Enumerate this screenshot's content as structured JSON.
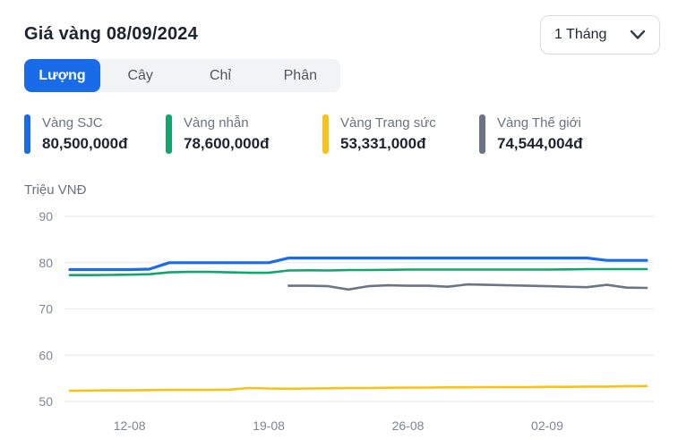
{
  "header": {
    "title": "Giá vàng 08/09/2024",
    "period_selector": {
      "value": "1 Tháng"
    }
  },
  "tabs": [
    {
      "id": "luong",
      "label": "Lượng",
      "active": true
    },
    {
      "id": "cay",
      "label": "Cây",
      "active": false
    },
    {
      "id": "chi",
      "label": "Chỉ",
      "active": false
    },
    {
      "id": "phan",
      "label": "Phân",
      "active": false
    }
  ],
  "legend": [
    {
      "id": "sjc",
      "name": "Vàng SJC",
      "value": "80,500,000đ",
      "color": "#1a6be8"
    },
    {
      "id": "nhan",
      "name": "Vàng nhẫn",
      "value": "78,600,000đ",
      "color": "#14a46e"
    },
    {
      "id": "trang-suc",
      "name": "Vàng Trang sức",
      "value": "53,331,000đ",
      "color": "#f6c21e"
    },
    {
      "id": "the-gioi",
      "name": "Vàng Thế giới",
      "value": "74,544,004đ",
      "color": "#6b7584"
    }
  ],
  "chart_data": {
    "type": "line",
    "unit_label": "Triệu VNĐ",
    "x": [
      "09-08",
      "10-08",
      "11-08",
      "12-08",
      "13-08",
      "14-08",
      "15-08",
      "16-08",
      "17-08",
      "18-08",
      "19-08",
      "20-08",
      "21-08",
      "22-08",
      "23-08",
      "24-08",
      "25-08",
      "26-08",
      "27-08",
      "28-08",
      "29-08",
      "30-08",
      "31-08",
      "01-09",
      "02-09",
      "03-09",
      "04-09",
      "05-09",
      "06-09",
      "07-09"
    ],
    "x_tick_indices": [
      3,
      10,
      17,
      24
    ],
    "x_tick_labels": [
      "12-08",
      "19-08",
      "26-08",
      "02-09"
    ],
    "y_ticks": [
      90,
      80,
      70,
      60,
      50
    ],
    "ylim": [
      50,
      90
    ],
    "grid": true,
    "legend_position": "top",
    "series": [
      {
        "id": "sjc",
        "name": "Vàng SJC",
        "color": "#1a6be8",
        "values": [
          78.5,
          78.5,
          78.5,
          78.5,
          78.6,
          80,
          80,
          80,
          80,
          80,
          80,
          81,
          81,
          81,
          81,
          81,
          81,
          81,
          81,
          81,
          81,
          81,
          81,
          81,
          81,
          81,
          81,
          80.5,
          80.5,
          80.5
        ]
      },
      {
        "id": "nhan",
        "name": "Vàng nhẫn",
        "color": "#14a46e",
        "values": [
          77.3,
          77.3,
          77.35,
          77.4,
          77.5,
          77.9,
          78,
          78,
          77.9,
          77.8,
          77.8,
          78.3,
          78.35,
          78.3,
          78.4,
          78.4,
          78.45,
          78.5,
          78.5,
          78.5,
          78.5,
          78.5,
          78.5,
          78.5,
          78.5,
          78.55,
          78.6,
          78.6,
          78.6,
          78.6
        ]
      },
      {
        "id": "trang-suc",
        "name": "Vàng Trang sức",
        "color": "#f6c21e",
        "values": [
          52.3,
          52.35,
          52.4,
          52.4,
          52.45,
          52.5,
          52.5,
          52.5,
          52.55,
          52.9,
          52.8,
          52.75,
          52.8,
          52.85,
          52.9,
          52.9,
          52.95,
          53,
          53,
          53.05,
          53.05,
          53.1,
          53.1,
          53.1,
          53.15,
          53.15,
          53.2,
          53.2,
          53.3,
          53.33
        ]
      },
      {
        "id": "the-gioi",
        "name": "Vàng Thế giới",
        "color": "#6b7584",
        "values": [
          null,
          null,
          null,
          null,
          null,
          null,
          null,
          null,
          null,
          null,
          null,
          75,
          75,
          74.9,
          74.2,
          74.9,
          75.1,
          75,
          75,
          74.8,
          75.3,
          75.2,
          75.1,
          75,
          74.9,
          74.8,
          74.7,
          75.2,
          74.6,
          74.54
        ]
      }
    ]
  }
}
